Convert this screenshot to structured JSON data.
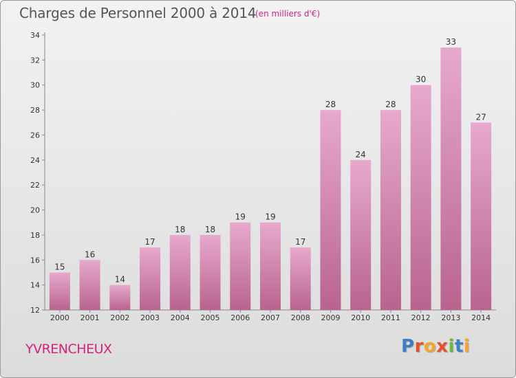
{
  "header": {
    "title": "Charges de Personnel 2000 à 2014",
    "subtitle": "(en milliers d'€)"
  },
  "footer": {
    "commune": "YVRENCHEUX",
    "logo_text": "Proxiti"
  },
  "chart_data": {
    "type": "bar",
    "title": "Charges de Personnel 2000 à 2014",
    "subtitle": "(en milliers d'€)",
    "xlabel": "",
    "ylabel": "",
    "categories": [
      "2000",
      "2001",
      "2002",
      "2003",
      "2004",
      "2005",
      "2006",
      "2007",
      "2008",
      "2009",
      "2010",
      "2011",
      "2012",
      "2013",
      "2014"
    ],
    "values": [
      15,
      16,
      14,
      17,
      18,
      18,
      19,
      19,
      17,
      28,
      24,
      28,
      30,
      33,
      27
    ],
    "ylim": [
      12,
      34
    ],
    "yticks": [
      12,
      14,
      16,
      18,
      20,
      22,
      24,
      26,
      28,
      30,
      32,
      34
    ],
    "grid": false,
    "legend": "none",
    "colors": {
      "bar_light": "#e7a9cd",
      "bar_dark": "#b8648e",
      "text": "#333333",
      "axis": "#888888"
    }
  }
}
